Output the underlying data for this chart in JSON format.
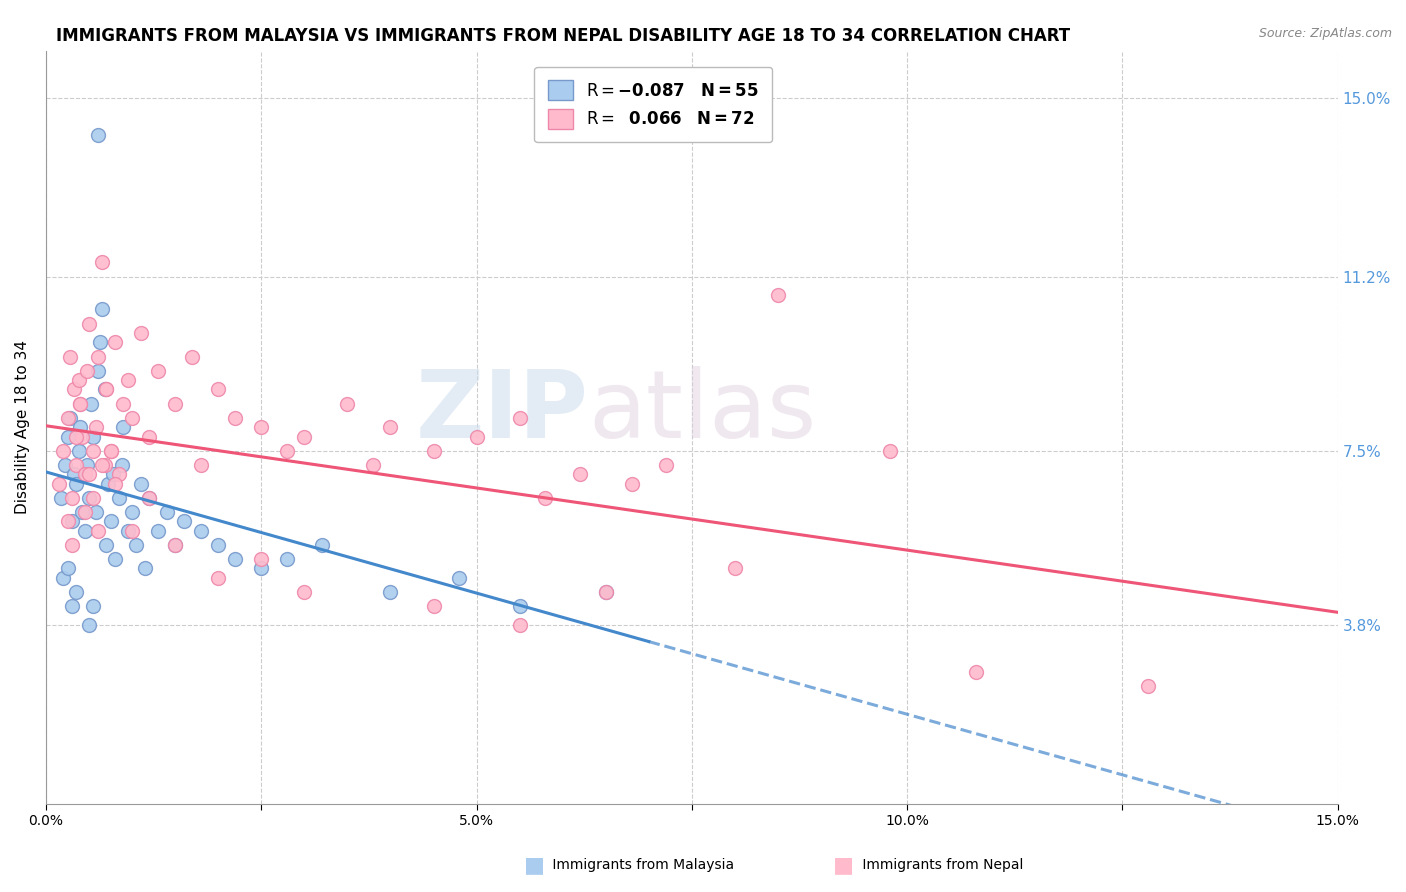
{
  "title": "IMMIGRANTS FROM MALAYSIA VS IMMIGRANTS FROM NEPAL DISABILITY AGE 18 TO 34 CORRELATION CHART",
  "source": "Source: ZipAtlas.com",
  "ylabel": "Disability Age 18 to 34",
  "xmin": 0.0,
  "xmax": 15.0,
  "ymin": 0.0,
  "ymax": 16.0,
  "right_yticks": [
    3.8,
    7.5,
    11.2,
    15.0
  ],
  "right_yticklabels": [
    "3.8%",
    "7.5%",
    "11.2%",
    "15.0%"
  ],
  "xtick_labels": [
    "0.0%",
    "",
    "5.0%",
    "",
    "10.0%",
    "",
    "15.0%"
  ],
  "xtick_values": [
    0.0,
    2.5,
    5.0,
    7.5,
    10.0,
    12.5,
    15.0
  ],
  "malaysia_color": "#aaccee",
  "malaysia_edge": "#7799cc",
  "nepal_color": "#ffbbcc",
  "nepal_edge": "#ee88aa",
  "malaysia_trend_color": "#4488cc",
  "nepal_trend_color": "#ee5577",
  "background_color": "#ffffff",
  "grid_color": "#cccccc",
  "watermark_zip": "ZIP",
  "watermark_atlas": "atlas",
  "title_fontsize": 12,
  "axis_label_fontsize": 11,
  "tick_fontsize": 10,
  "malaysia_x": [
    0.18,
    0.22,
    0.25,
    0.28,
    0.3,
    0.32,
    0.35,
    0.38,
    0.4,
    0.42,
    0.45,
    0.48,
    0.5,
    0.52,
    0.55,
    0.58,
    0.6,
    0.63,
    0.65,
    0.68,
    0.7,
    0.72,
    0.75,
    0.78,
    0.8,
    0.85,
    0.88,
    0.9,
    0.95,
    1.0,
    1.05,
    1.1,
    1.15,
    1.2,
    1.3,
    1.4,
    1.5,
    1.6,
    1.8,
    2.0,
    2.2,
    2.5,
    2.8,
    3.2,
    4.0,
    4.8,
    5.5,
    6.5,
    0.2,
    0.25,
    0.3,
    0.35,
    0.5,
    0.55,
    0.6
  ],
  "malaysia_y": [
    6.5,
    7.2,
    7.8,
    8.2,
    6.0,
    7.0,
    6.8,
    7.5,
    8.0,
    6.2,
    5.8,
    7.2,
    6.5,
    8.5,
    7.8,
    6.2,
    9.2,
    9.8,
    10.5,
    8.8,
    5.5,
    6.8,
    6.0,
    7.0,
    5.2,
    6.5,
    7.2,
    8.0,
    5.8,
    6.2,
    5.5,
    6.8,
    5.0,
    6.5,
    5.8,
    6.2,
    5.5,
    6.0,
    5.8,
    5.5,
    5.2,
    5.0,
    5.2,
    5.5,
    4.5,
    4.8,
    4.2,
    4.5,
    4.8,
    5.0,
    4.2,
    4.5,
    3.8,
    4.2,
    14.2
  ],
  "nepal_x": [
    0.15,
    0.2,
    0.25,
    0.28,
    0.3,
    0.32,
    0.35,
    0.38,
    0.4,
    0.42,
    0.45,
    0.48,
    0.5,
    0.55,
    0.58,
    0.6,
    0.65,
    0.68,
    0.7,
    0.75,
    0.8,
    0.85,
    0.9,
    0.95,
    1.0,
    1.1,
    1.2,
    1.3,
    1.5,
    1.7,
    1.8,
    2.0,
    2.2,
    2.5,
    2.8,
    3.0,
    3.5,
    3.8,
    4.0,
    4.5,
    5.0,
    5.5,
    5.8,
    6.2,
    6.8,
    7.2,
    8.5,
    9.8,
    0.25,
    0.3,
    0.35,
    0.4,
    0.45,
    0.5,
    0.55,
    0.6,
    0.65,
    0.7,
    0.75,
    0.8,
    1.0,
    1.2,
    1.5,
    2.0,
    2.5,
    3.0,
    4.5,
    5.5,
    6.5,
    8.0,
    10.8,
    12.8
  ],
  "nepal_y": [
    6.8,
    7.5,
    8.2,
    9.5,
    6.5,
    8.8,
    7.2,
    9.0,
    8.5,
    7.8,
    7.0,
    9.2,
    10.2,
    7.5,
    8.0,
    9.5,
    11.5,
    7.2,
    8.8,
    7.5,
    9.8,
    7.0,
    8.5,
    9.0,
    8.2,
    10.0,
    7.8,
    9.2,
    8.5,
    9.5,
    7.2,
    8.8,
    8.2,
    8.0,
    7.5,
    7.8,
    8.5,
    7.2,
    8.0,
    7.5,
    7.8,
    8.2,
    6.5,
    7.0,
    6.8,
    7.2,
    10.8,
    7.5,
    6.0,
    5.5,
    7.8,
    8.5,
    6.2,
    7.0,
    6.5,
    5.8,
    7.2,
    8.8,
    7.5,
    6.8,
    5.8,
    6.5,
    5.5,
    4.8,
    5.2,
    4.5,
    4.2,
    3.8,
    4.5,
    5.0,
    2.8,
    2.5
  ]
}
